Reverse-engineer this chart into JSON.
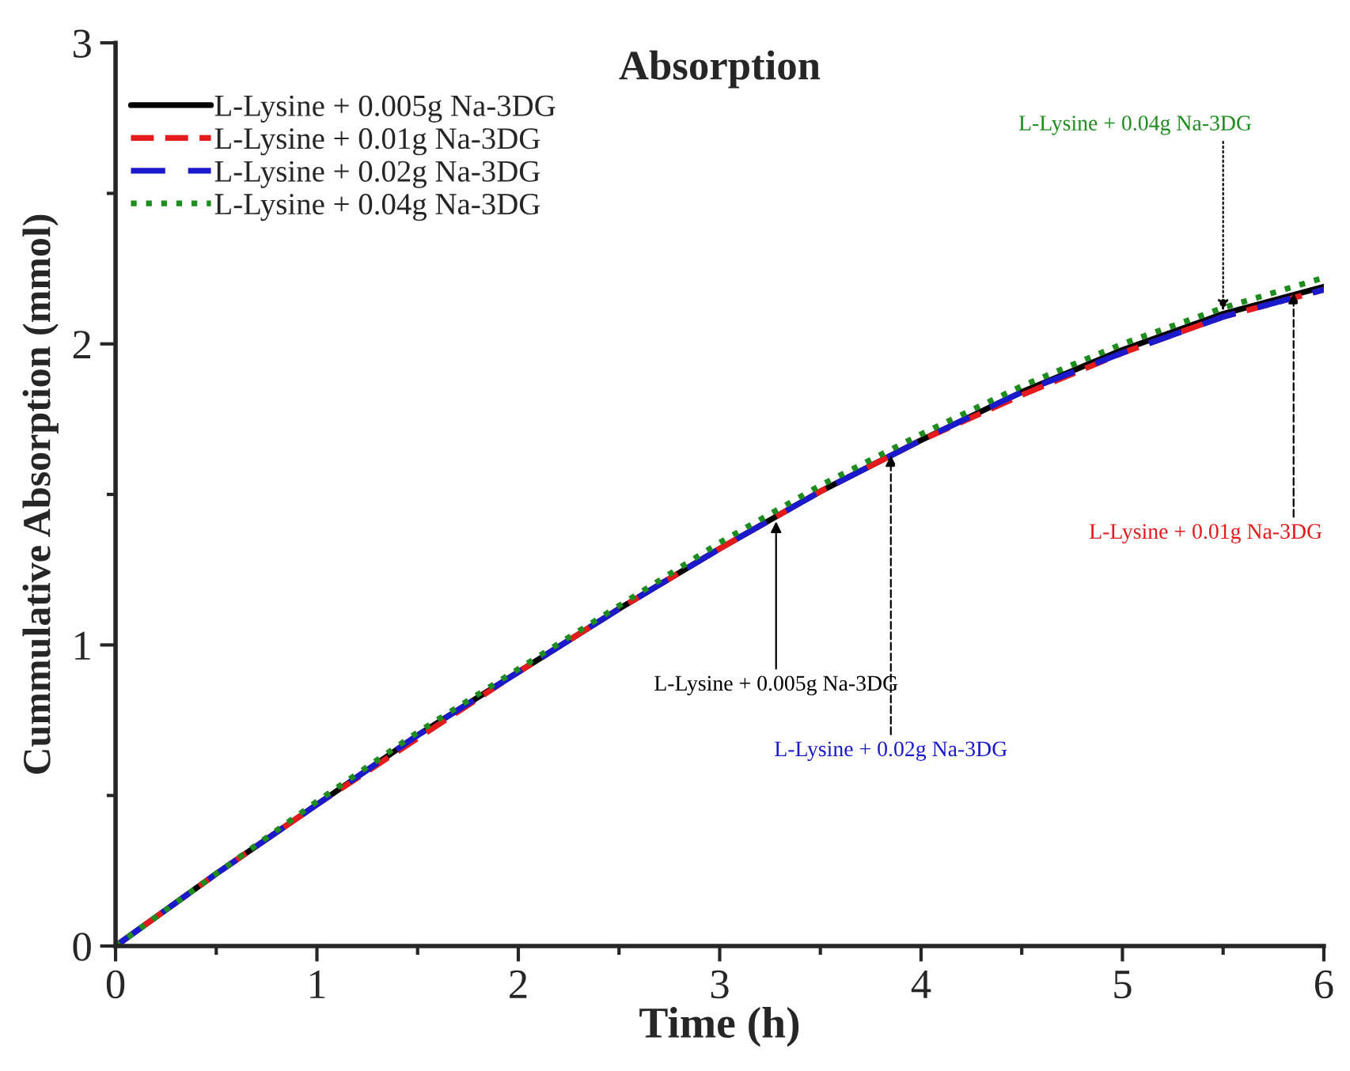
{
  "chart_data": {
    "type": "line",
    "title": "Absorption",
    "xlabel": "Time (h)",
    "ylabel": "Cummulative Absorption (mmol)",
    "x": [
      0,
      0.5,
      1,
      1.5,
      2,
      2.5,
      3,
      3.5,
      4,
      4.5,
      5,
      5.5,
      6
    ],
    "series": [
      {
        "name": "L-Lysine + 0.005g Na-3DG",
        "color": "#000000",
        "line_style": "solid",
        "values": [
          0,
          0.24,
          0.47,
          0.7,
          0.91,
          1.12,
          1.32,
          1.51,
          1.68,
          1.84,
          1.98,
          2.1,
          2.19
        ]
      },
      {
        "name": "L-Lysine + 0.01g Na-3DG",
        "color": "#e41a1c",
        "line_style": "dashed",
        "values": [
          0,
          0.24,
          0.47,
          0.69,
          0.91,
          1.12,
          1.32,
          1.51,
          1.68,
          1.83,
          1.97,
          2.09,
          2.18
        ]
      },
      {
        "name": "L-Lysine + 0.02g Na-3DG",
        "color": "#1a1acc",
        "line_style": "dashed",
        "values": [
          0,
          0.24,
          0.47,
          0.7,
          0.91,
          1.12,
          1.32,
          1.51,
          1.68,
          1.84,
          1.97,
          2.09,
          2.18
        ]
      },
      {
        "name": "L-Lysine + 0.04g Na-3DG",
        "color": "#1e8c1e",
        "line_style": "dotted",
        "values": [
          0,
          0.24,
          0.48,
          0.71,
          0.92,
          1.13,
          1.34,
          1.53,
          1.7,
          1.86,
          2.0,
          2.12,
          2.22
        ]
      }
    ],
    "annotations": [
      {
        "text": "L-Lysine + 0.005g Na-3DG",
        "x": 3.28,
        "y": 1.41
      },
      {
        "text": "L-Lysine + 0.01g Na-3DG",
        "x": 5.85,
        "y": 2.17
      },
      {
        "text": "L-Lysine + 0.02g Na-3DG",
        "x": 3.85,
        "y": 1.63
      },
      {
        "text": "L-Lysine + 0.04g Na-3DG",
        "x": 5.5,
        "y": 2.11
      }
    ],
    "xlim": [
      0,
      6
    ],
    "ylim": [
      0,
      3
    ],
    "xticks": [
      0,
      1,
      2,
      3,
      4,
      5,
      6
    ],
    "yticks": [
      0,
      1,
      2,
      3
    ],
    "grid": false,
    "legend": "top left",
    "marker": "none"
  }
}
